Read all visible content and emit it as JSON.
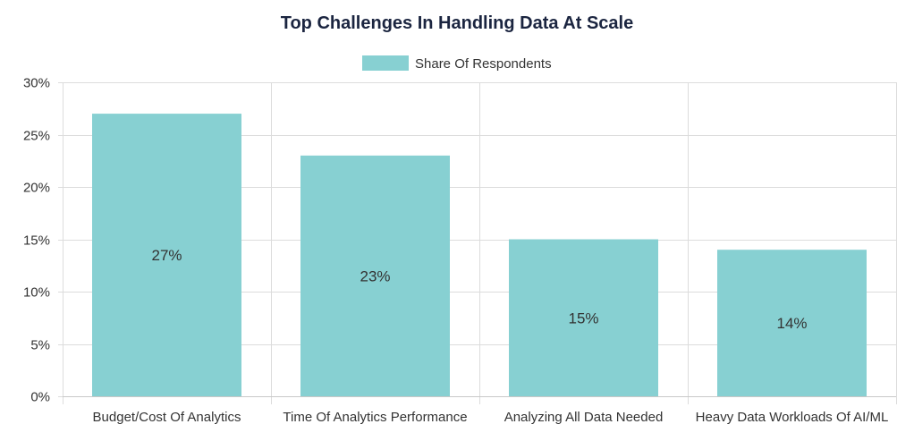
{
  "chart_data": {
    "type": "bar",
    "title": "Top Challenges In Handling Data At Scale",
    "categories": [
      "Budget/Cost Of Analytics",
      "Time Of Analytics Performance",
      "Analyzing All Data Needed",
      "Heavy Data Workloads Of AI/ML"
    ],
    "series": [
      {
        "name": "Share Of Respondents",
        "values": [
          27,
          23,
          15,
          14
        ],
        "color": "#87d0d2"
      }
    ],
    "value_labels": [
      "27%",
      "23%",
      "15%",
      "14%"
    ],
    "ylim": [
      0,
      30
    ],
    "yticks": [
      0,
      5,
      10,
      15,
      20,
      25,
      30
    ],
    "ytick_labels": [
      "0%",
      "5%",
      "10%",
      "15%",
      "20%",
      "25%",
      "30%"
    ],
    "xlabel": "",
    "ylabel": "",
    "grid": true,
    "legend_position": "top-center"
  }
}
